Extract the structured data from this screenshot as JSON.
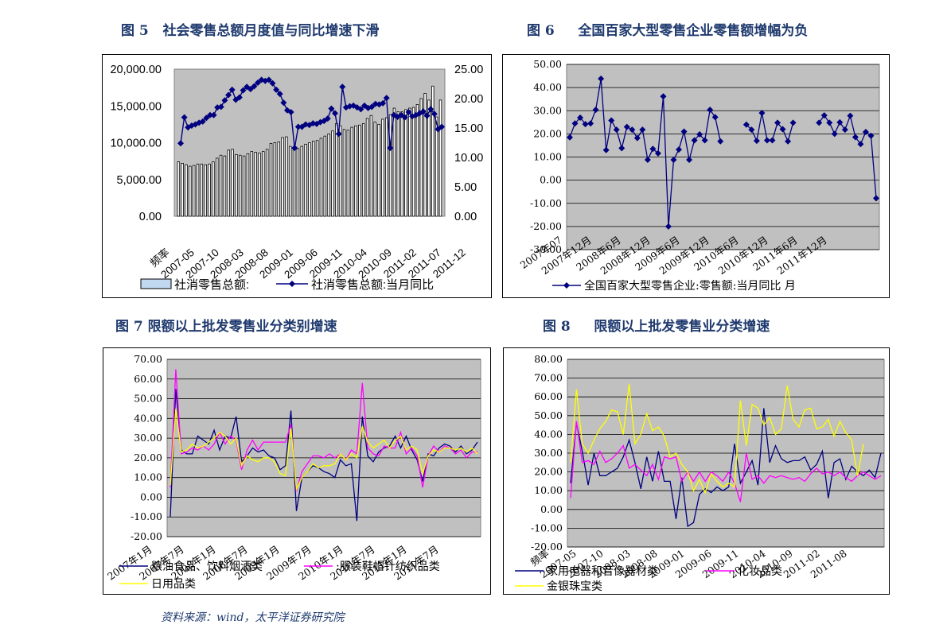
{
  "figures": [
    {
      "id": "fig5",
      "num": "图 5",
      "title": "社会零售总额月度值与同比增速下滑"
    },
    {
      "id": "fig6",
      "num": "图 6",
      "title": "全国百家大型零售企业零售额增幅为负"
    },
    {
      "id": "fig7",
      "num": "图 7",
      "title": "限额以上批发零售业分类别增速"
    },
    {
      "id": "fig8",
      "num": "图 8",
      "title": "限额以上批发零售业分类增速"
    }
  ],
  "source": "资料来源：wind，太平洋证券研究院",
  "colors": {
    "navy": "#000080",
    "magenta": "#ff00ff",
    "yellow": "#ffff00",
    "plot_gray": "#c0c0c0",
    "title": "#1f3a6e"
  },
  "chart_data": [
    {
      "id": "fig5",
      "type": "bar+line",
      "left_axis": {
        "ticks": [
          "0.00",
          "5,000.00",
          "10,000.00",
          "15,000.00",
          "20,000.00"
        ],
        "range": [
          0,
          20000
        ]
      },
      "right_axis": {
        "ticks": [
          "0.00",
          "5.00",
          "10.00",
          "15.00",
          "20.00",
          "25.00"
        ],
        "range": [
          0,
          25
        ]
      },
      "x_tick_labels": [
        "频率",
        "2007-05",
        "2007-10",
        "2008-03",
        "2008-08",
        "2009-01",
        "2009-06",
        "2009-11",
        "2010-04",
        "2010-09",
        "2011-02",
        "2011-07",
        "2011-12"
      ],
      "series": [
        {
          "name": "社消零售总额:",
          "kind": "bar",
          "values": [
            7400,
            7200,
            7000,
            6800,
            6900,
            7100,
            7100,
            7000,
            7100,
            7400,
            7900,
            8300,
            8200,
            9000,
            9100,
            8400,
            8300,
            8200,
            8500,
            8800,
            8700,
            8600,
            8800,
            9100,
            9900,
            10000,
            10100,
            10700,
            10800,
            9500,
            9300,
            9200,
            9500,
            9800,
            10000,
            10200,
            10300,
            10600,
            10900,
            11200,
            11600,
            12600,
            12300,
            11800,
            11700,
            12100,
            12300,
            12400,
            12600,
            13300,
            13700,
            12800,
            12500,
            13200,
            13400,
            13800,
            14700,
            14200,
            14200,
            14500,
            14700,
            14800,
            15200,
            16000,
            16700,
            15800,
            17700,
            13500,
            15800
          ]
        },
        {
          "name": "社消零售总额:当月同比",
          "kind": "line",
          "values": [
            12.4,
            16.8,
            15.1,
            15.4,
            15.6,
            15.9,
            16.1,
            16.7,
            17.2,
            17.2,
            18.5,
            18.6,
            19.7,
            20.6,
            21.5,
            19.8,
            20.2,
            21.4,
            22.0,
            21.6,
            22.1,
            22.7,
            23.2,
            23.0,
            23.2,
            22.6,
            21.5,
            20.8,
            19.3,
            18.0,
            17.7,
            11.6,
            15.2,
            15.2,
            15.6,
            15.5,
            15.8,
            15.7,
            16.0,
            16.2,
            16.6,
            18.3,
            17.5,
            14.0,
            22.0,
            18.5,
            18.7,
            18.8,
            18.5,
            18.2,
            18.8,
            18.4,
            18.6,
            19.1,
            19.0,
            19.2,
            20.1,
            11.6,
            17.2,
            16.9,
            17.2,
            16.8,
            17.7,
            17.0,
            17.2,
            17.5,
            17.8,
            17.1,
            18.2,
            17.4,
            14.8,
            15.2
          ]
        }
      ],
      "legend": {
        "placement": "bottom"
      }
    },
    {
      "id": "fig6",
      "type": "line",
      "y_axis": {
        "ticks": [
          "-30.00",
          "-20.00",
          "-10.00",
          "0.00",
          "10.00",
          "20.00",
          "30.00",
          "40.00",
          "50.00"
        ],
        "range": [
          -30,
          50
        ]
      },
      "x_tick_labels": [
        "2007年07",
        "2007年12月",
        "2008年6月",
        "2008年12月",
        "2009年6月",
        "2009年12月",
        "2010年6月",
        "2010年12月",
        "2011年6月",
        "2011年12月"
      ],
      "series": [
        {
          "name": "全国百家大型零售企业:零售额:当月同比  月",
          "values": [
            18.5,
            24.5,
            27.0,
            24.2,
            24.5,
            30.4,
            43.8,
            13.0,
            25.8,
            21.8,
            13.8,
            23.0,
            21.8,
            18.2,
            21.8,
            8.8,
            13.5,
            11.6,
            36.2,
            -20.0,
            8.8,
            13.2,
            21.0,
            8.8,
            17.2,
            19.8,
            17.2,
            30.4,
            27.2,
            16.8,
            null,
            null,
            null,
            null,
            24.0,
            21.8,
            17.0,
            29.0,
            17.2,
            17.2,
            24.8,
            22.0,
            16.8,
            24.8,
            null,
            null,
            null,
            null,
            24.8,
            28.0,
            24.8,
            20.0,
            25.0,
            21.8,
            27.8,
            18.6,
            15.6,
            20.8,
            19.2,
            -7.8
          ]
        }
      ],
      "legend": {
        "placement": "bottom"
      }
    },
    {
      "id": "fig7",
      "type": "line",
      "y_axis": {
        "ticks": [
          "-20.00",
          "-10.00",
          "0.00",
          "10.00",
          "20.00",
          "30.00",
          "40.00",
          "50.00",
          "60.00",
          "70.00"
        ],
        "range": [
          -20,
          70
        ]
      },
      "x_tick_labels": [
        "2007年1月",
        "2007年7月",
        "2008年1月",
        "2008年7月",
        "2009年1月",
        "2009年7月",
        "2010年1月",
        "2010年7月",
        "2011年1月",
        "2011年7月"
      ],
      "series": [
        {
          "name": "粮油食品、饮料烟酒类",
          "color": "navy",
          "values": [
            -10,
            55,
            24,
            22,
            22,
            31,
            29,
            27,
            34,
            24,
            31,
            30,
            41,
            18,
            21,
            25,
            23,
            24,
            21,
            20,
            14,
            16,
            44,
            -7,
            10,
            13,
            16,
            15,
            13,
            12,
            10,
            19,
            16,
            17,
            -12,
            41,
            21,
            18,
            23,
            25,
            26,
            31,
            25,
            31,
            24,
            19,
            8,
            22,
            21,
            25,
            27,
            26,
            23,
            26,
            22,
            24,
            28
          ]
        },
        {
          "name": ":服装鞋帽针纺织品类",
          "color": "magenta",
          "values": [
            5,
            65,
            22,
            23,
            25,
            24,
            26,
            24,
            27,
            33,
            27,
            31,
            29,
            14,
            24,
            29,
            24,
            28,
            28,
            28,
            28,
            28,
            37,
            3,
            13,
            17,
            21,
            21,
            20,
            22,
            20,
            22,
            19,
            24,
            22,
            58,
            25,
            22,
            21,
            26,
            25,
            25,
            33,
            22,
            25,
            21,
            5,
            21,
            26,
            23,
            26,
            25,
            22,
            24,
            20,
            23,
            23
          ]
        },
        {
          "name": "日用品类",
          "color": "yellow",
          "values": [
            6,
            45,
            23,
            24,
            27,
            25,
            26,
            28,
            30,
            33,
            31,
            27,
            30,
            16,
            21,
            19,
            18,
            20,
            20,
            18,
            12,
            11,
            35,
            4,
            10,
            13,
            17,
            15,
            16,
            16,
            17,
            22,
            19,
            22,
            20,
            36,
            28,
            25,
            27,
            29,
            25,
            29,
            31,
            24,
            26,
            24,
            12,
            21,
            24,
            23,
            25,
            25,
            24,
            25,
            23,
            25,
            22
          ]
        }
      ],
      "legend": {
        "placement": "bottom"
      }
    },
    {
      "id": "fig8",
      "type": "line",
      "y_axis": {
        "ticks": [
          "-20.00",
          "-10.00",
          "0.00",
          "10.00",
          "20.00",
          "30.00",
          "40.00",
          "50.00",
          "60.00",
          "70.00",
          "80.00"
        ],
        "range": [
          -20,
          80
        ]
      },
      "x_tick_labels": [
        "频率",
        "2007-05",
        "2007-10",
        "2008-03",
        "2008-08",
        "2009-01",
        "2009-06",
        "2009-11",
        "2010-04",
        "2010-09",
        "2011-02",
        "2011-08"
      ],
      "series": [
        {
          "name": "家用电器和音像器材类",
          "color": "navy",
          "values": [
            14,
            46,
            31,
            13,
            30,
            18,
            18,
            20,
            22,
            28,
            37,
            25,
            11,
            28,
            15,
            31,
            15,
            15,
            -5,
            17,
            -9,
            -7,
            8,
            11,
            9,
            12,
            10,
            12,
            35,
            14,
            20,
            26,
            13,
            54,
            25,
            34,
            27,
            25,
            26,
            26,
            28,
            21,
            24,
            31,
            6,
            25,
            27,
            16,
            23,
            20,
            18,
            21,
            17,
            30
          ]
        },
        {
          "name": "化妆品类",
          "color": "magenta",
          "values": [
            6,
            47,
            25,
            26,
            24,
            31,
            25,
            27,
            30,
            34,
            22,
            24,
            21,
            18,
            24,
            16,
            28,
            27,
            28,
            15,
            20,
            15,
            20,
            15,
            20,
            18,
            15,
            20,
            14,
            4,
            30,
            16,
            18,
            14,
            18,
            17,
            18,
            17,
            16,
            17,
            15,
            19,
            22,
            19,
            20,
            18,
            20,
            17,
            15,
            18,
            20,
            18,
            16,
            18
          ]
        },
        {
          "name": "金银珠宝类",
          "color": "yellow",
          "values": [
            25,
            64,
            35,
            30,
            37,
            43,
            47,
            53,
            52,
            40,
            67,
            35,
            40,
            51,
            42,
            44,
            39,
            28,
            30,
            24,
            20,
            10,
            16,
            9,
            19,
            15,
            12,
            14,
            12,
            58,
            34,
            56,
            54,
            45,
            49,
            40,
            43,
            66,
            48,
            44,
            53,
            54,
            43,
            44,
            48,
            39,
            47,
            41,
            37,
            18,
            35
          ]
        }
      ],
      "legend": {
        "placement": "bottom"
      }
    }
  ]
}
